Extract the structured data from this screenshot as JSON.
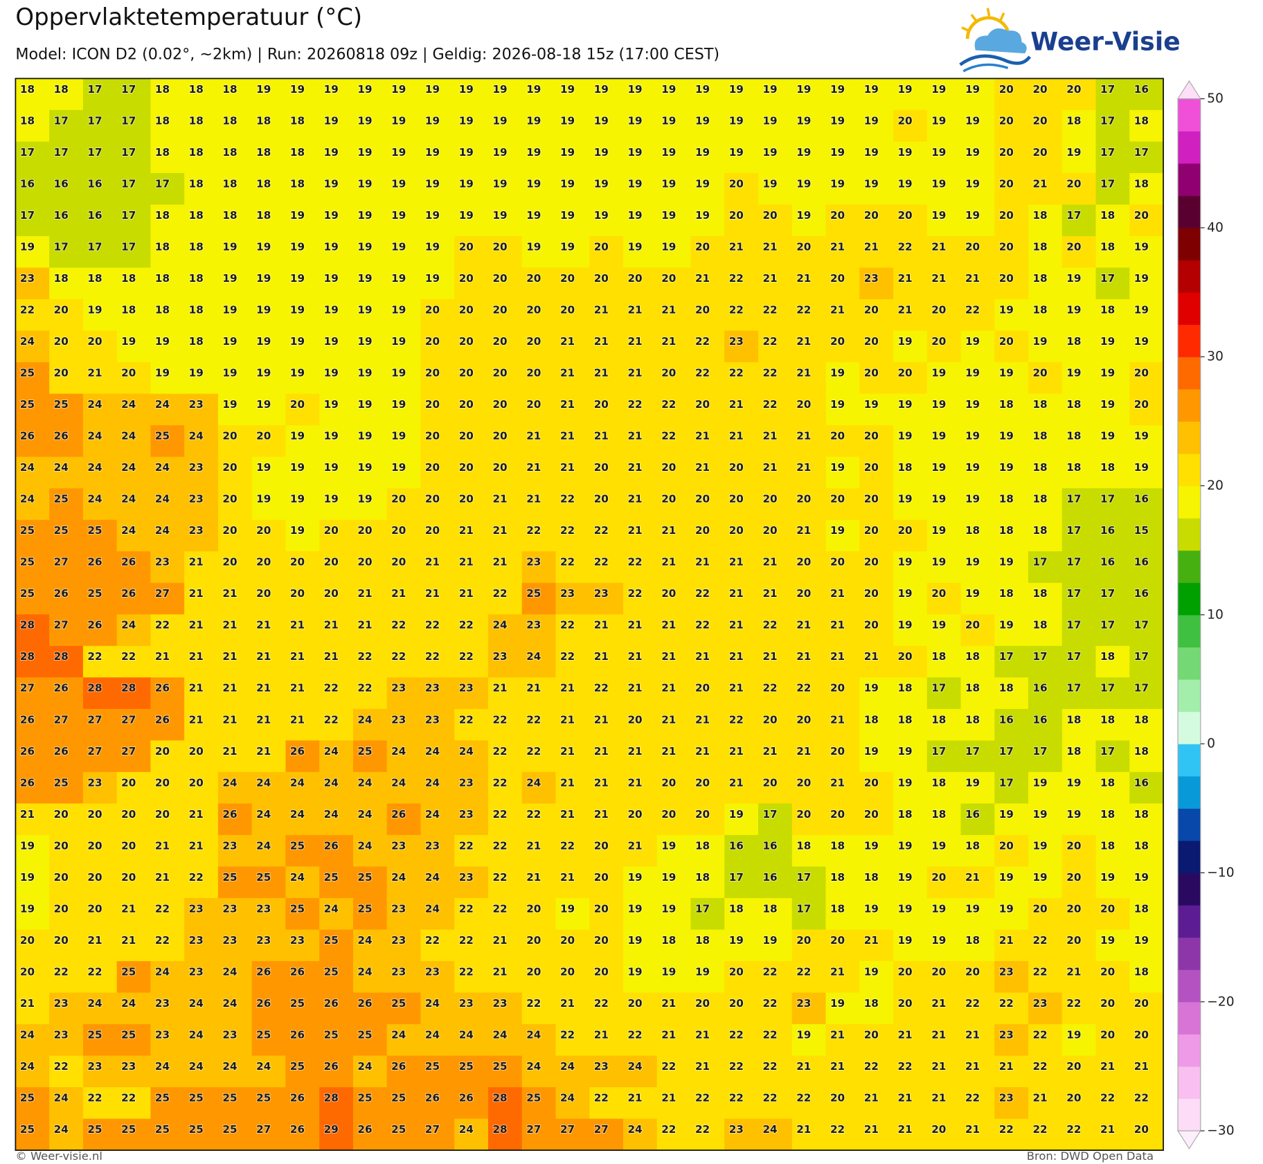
{
  "header": {
    "title": "Oppervlaktetemperatuur (°C)",
    "subtitle": "Model: ICON D2 (0.02°, ~2km)  |  Run: 20260818 09z  |  Geldig: 2026-08-18 15z (17:00 CEST)",
    "logo": "Weer-Visie"
  },
  "map": {
    "rows": [
      [
        18,
        18,
        17,
        17,
        18,
        18,
        18,
        19,
        19,
        19,
        19,
        19,
        19,
        19,
        19,
        19,
        19,
        19,
        19,
        19,
        19,
        19,
        19,
        19,
        19,
        19,
        19,
        19,
        19,
        20,
        20,
        20,
        17,
        16
      ],
      [
        18,
        17,
        17,
        17,
        18,
        18,
        18,
        18,
        18,
        19,
        19,
        19,
        19,
        19,
        19,
        19,
        19,
        19,
        19,
        19,
        19,
        19,
        19,
        19,
        19,
        19,
        20,
        19,
        19,
        20,
        20,
        18,
        17,
        18
      ],
      [
        17,
        17,
        17,
        17,
        18,
        18,
        18,
        18,
        18,
        19,
        19,
        19,
        19,
        19,
        19,
        19,
        19,
        19,
        19,
        19,
        19,
        19,
        19,
        19,
        19,
        19,
        19,
        19,
        19,
        20,
        20,
        19,
        17,
        17
      ],
      [
        16,
        16,
        16,
        17,
        17,
        18,
        18,
        18,
        18,
        19,
        19,
        19,
        19,
        19,
        19,
        19,
        19,
        19,
        19,
        19,
        19,
        20,
        19,
        19,
        19,
        19,
        19,
        19,
        19,
        20,
        21,
        20,
        17,
        18
      ],
      [
        17,
        16,
        16,
        17,
        18,
        18,
        18,
        18,
        19,
        19,
        19,
        19,
        19,
        19,
        19,
        19,
        19,
        19,
        19,
        19,
        19,
        20,
        20,
        19,
        20,
        20,
        20,
        19,
        19,
        20,
        18,
        17,
        18,
        20
      ],
      [
        19,
        17,
        17,
        17,
        18,
        18,
        19,
        19,
        19,
        19,
        19,
        19,
        19,
        20,
        20,
        19,
        19,
        20,
        19,
        19,
        20,
        21,
        21,
        20,
        21,
        21,
        22,
        21,
        20,
        20,
        18,
        20,
        18,
        19
      ],
      [
        23,
        18,
        18,
        18,
        18,
        18,
        19,
        19,
        19,
        19,
        19,
        19,
        19,
        20,
        20,
        20,
        20,
        20,
        20,
        20,
        21,
        22,
        21,
        21,
        20,
        23,
        21,
        21,
        21,
        20,
        18,
        19,
        17,
        19
      ],
      [
        22,
        20,
        19,
        18,
        18,
        18,
        19,
        19,
        19,
        19,
        19,
        19,
        20,
        20,
        20,
        20,
        20,
        21,
        21,
        21,
        20,
        22,
        22,
        22,
        21,
        20,
        21,
        20,
        22,
        19,
        18,
        19,
        18,
        19
      ],
      [
        24,
        20,
        20,
        19,
        19,
        18,
        19,
        19,
        19,
        19,
        19,
        19,
        20,
        20,
        20,
        20,
        21,
        21,
        21,
        21,
        22,
        23,
        22,
        21,
        20,
        20,
        19,
        20,
        19,
        20,
        19,
        18,
        19,
        19
      ],
      [
        25,
        20,
        21,
        20,
        19,
        19,
        19,
        19,
        19,
        19,
        19,
        19,
        20,
        20,
        20,
        20,
        21,
        21,
        21,
        20,
        22,
        22,
        22,
        21,
        19,
        20,
        20,
        19,
        19,
        19,
        20,
        19,
        19,
        20
      ],
      [
        25,
        25,
        24,
        24,
        24,
        23,
        19,
        19,
        20,
        19,
        19,
        19,
        20,
        20,
        20,
        20,
        21,
        20,
        22,
        22,
        20,
        21,
        22,
        20,
        19,
        19,
        19,
        19,
        19,
        18,
        18,
        18,
        19,
        20
      ],
      [
        26,
        26,
        24,
        24,
        25,
        24,
        20,
        20,
        19,
        19,
        19,
        19,
        20,
        20,
        20,
        21,
        21,
        21,
        21,
        22,
        21,
        21,
        21,
        21,
        20,
        20,
        19,
        19,
        19,
        19,
        18,
        18,
        19,
        19
      ],
      [
        24,
        24,
        24,
        24,
        24,
        23,
        20,
        19,
        19,
        19,
        19,
        19,
        20,
        20,
        20,
        21,
        21,
        20,
        21,
        20,
        21,
        20,
        21,
        21,
        19,
        20,
        18,
        19,
        19,
        19,
        18,
        18,
        18,
        19
      ],
      [
        24,
        25,
        24,
        24,
        24,
        23,
        20,
        19,
        19,
        19,
        19,
        20,
        20,
        20,
        21,
        21,
        22,
        20,
        21,
        20,
        20,
        20,
        20,
        20,
        20,
        20,
        19,
        19,
        19,
        18,
        18,
        17,
        17,
        16
      ],
      [
        25,
        25,
        25,
        24,
        24,
        23,
        20,
        20,
        19,
        20,
        20,
        20,
        20,
        21,
        21,
        22,
        22,
        22,
        21,
        21,
        20,
        20,
        20,
        21,
        19,
        20,
        20,
        19,
        18,
        18,
        18,
        17,
        16,
        15
      ],
      [
        25,
        27,
        26,
        26,
        23,
        21,
        20,
        20,
        20,
        20,
        20,
        20,
        21,
        21,
        21,
        23,
        22,
        22,
        22,
        21,
        21,
        21,
        21,
        20,
        20,
        20,
        19,
        19,
        19,
        19,
        17,
        17,
        16,
        16
      ],
      [
        25,
        26,
        25,
        26,
        27,
        21,
        21,
        20,
        20,
        20,
        21,
        21,
        21,
        21,
        22,
        25,
        23,
        23,
        22,
        20,
        22,
        21,
        21,
        20,
        21,
        20,
        19,
        20,
        19,
        18,
        18,
        17,
        17,
        16
      ],
      [
        28,
        27,
        26,
        24,
        22,
        21,
        21,
        21,
        21,
        21,
        21,
        22,
        22,
        22,
        24,
        23,
        22,
        21,
        21,
        21,
        22,
        21,
        22,
        21,
        21,
        20,
        19,
        19,
        20,
        19,
        18,
        17,
        17,
        17
      ],
      [
        28,
        28,
        22,
        22,
        21,
        21,
        21,
        21,
        21,
        21,
        22,
        22,
        22,
        22,
        23,
        24,
        22,
        21,
        21,
        21,
        21,
        21,
        21,
        21,
        21,
        21,
        20,
        18,
        18,
        17,
        17,
        17,
        18,
        17
      ],
      [
        27,
        26,
        28,
        28,
        26,
        21,
        21,
        21,
        21,
        22,
        22,
        23,
        23,
        23,
        21,
        21,
        21,
        22,
        21,
        21,
        20,
        21,
        22,
        22,
        20,
        19,
        18,
        17,
        18,
        18,
        16,
        17,
        17,
        17
      ],
      [
        26,
        27,
        27,
        27,
        26,
        21,
        21,
        21,
        21,
        22,
        24,
        23,
        23,
        22,
        22,
        22,
        21,
        21,
        20,
        21,
        21,
        22,
        20,
        20,
        21,
        18,
        18,
        18,
        18,
        16,
        16,
        18,
        18,
        18
      ],
      [
        26,
        26,
        27,
        27,
        20,
        20,
        21,
        21,
        26,
        24,
        25,
        24,
        24,
        24,
        22,
        22,
        21,
        21,
        21,
        21,
        21,
        21,
        21,
        21,
        20,
        19,
        19,
        17,
        17,
        17,
        17,
        18,
        17,
        18
      ],
      [
        26,
        25,
        23,
        20,
        20,
        20,
        24,
        24,
        24,
        24,
        24,
        24,
        24,
        23,
        22,
        24,
        21,
        21,
        21,
        20,
        20,
        21,
        20,
        20,
        21,
        20,
        19,
        18,
        19,
        17,
        19,
        19,
        18,
        16
      ],
      [
        21,
        20,
        20,
        20,
        20,
        21,
        26,
        24,
        24,
        24,
        24,
        26,
        24,
        23,
        22,
        22,
        21,
        21,
        20,
        20,
        20,
        19,
        17,
        20,
        20,
        20,
        18,
        18,
        16,
        19,
        19,
        19,
        18,
        18
      ],
      [
        19,
        20,
        20,
        20,
        21,
        21,
        23,
        24,
        25,
        26,
        24,
        23,
        23,
        22,
        22,
        21,
        22,
        20,
        21,
        19,
        18,
        16,
        16,
        18,
        18,
        19,
        19,
        19,
        18,
        20,
        19,
        20,
        18,
        18
      ],
      [
        19,
        20,
        20,
        20,
        21,
        22,
        25,
        25,
        24,
        25,
        25,
        24,
        24,
        23,
        22,
        21,
        21,
        20,
        19,
        19,
        18,
        17,
        16,
        17,
        18,
        18,
        19,
        20,
        21,
        19,
        19,
        20,
        19,
        19
      ],
      [
        19,
        20,
        20,
        21,
        22,
        23,
        23,
        23,
        25,
        24,
        25,
        23,
        24,
        22,
        22,
        20,
        19,
        20,
        19,
        19,
        17,
        18,
        18,
        17,
        18,
        19,
        19,
        19,
        19,
        19,
        20,
        20,
        20,
        18
      ],
      [
        20,
        20,
        21,
        21,
        22,
        23,
        23,
        23,
        23,
        25,
        24,
        23,
        22,
        22,
        21,
        20,
        20,
        20,
        19,
        18,
        18,
        19,
        19,
        20,
        20,
        21,
        19,
        19,
        18,
        21,
        22,
        20,
        19,
        19
      ],
      [
        20,
        22,
        22,
        25,
        24,
        23,
        24,
        26,
        26,
        25,
        24,
        23,
        23,
        22,
        21,
        20,
        20,
        20,
        19,
        19,
        19,
        20,
        22,
        22,
        21,
        19,
        20,
        20,
        20,
        23,
        22,
        21,
        20,
        18
      ],
      [
        21,
        23,
        24,
        24,
        23,
        24,
        24,
        26,
        25,
        26,
        26,
        25,
        24,
        23,
        23,
        22,
        21,
        22,
        20,
        21,
        20,
        20,
        22,
        23,
        19,
        18,
        20,
        21,
        22,
        22,
        23,
        22,
        20,
        20
      ],
      [
        24,
        23,
        25,
        25,
        23,
        24,
        23,
        25,
        26,
        25,
        25,
        24,
        24,
        24,
        24,
        24,
        22,
        21,
        22,
        21,
        21,
        22,
        22,
        19,
        21,
        20,
        21,
        21,
        21,
        23,
        22,
        19,
        20,
        20
      ],
      [
        24,
        22,
        23,
        23,
        24,
        24,
        24,
        24,
        25,
        26,
        24,
        26,
        25,
        25,
        25,
        24,
        24,
        23,
        24,
        22,
        21,
        22,
        22,
        21,
        21,
        22,
        22,
        21,
        21,
        21,
        22,
        20,
        21,
        21
      ],
      [
        25,
        24,
        22,
        22,
        25,
        25,
        25,
        25,
        26,
        28,
        25,
        25,
        26,
        26,
        28,
        25,
        24,
        22,
        21,
        21,
        22,
        22,
        22,
        22,
        20,
        21,
        21,
        21,
        22,
        23,
        21,
        20,
        22,
        22
      ],
      [
        25,
        24,
        25,
        25,
        25,
        25,
        25,
        27,
        26,
        29,
        26,
        25,
        27,
        24,
        28,
        27,
        27,
        27,
        24,
        22,
        22,
        23,
        24,
        21,
        22,
        21,
        21,
        20,
        21,
        22,
        22,
        22,
        21,
        20
      ]
    ]
  },
  "colorbar": {
    "lim": [
      -30,
      50
    ],
    "ticks": [
      50,
      40,
      30,
      20,
      10,
      0,
      {
        "value": -10,
        "label": "−10"
      },
      {
        "value": -20,
        "label": "−20"
      },
      {
        "value": -30,
        "label": "−30"
      }
    ],
    "colors": [
      "#fcdcf7",
      "#f8bff0",
      "#ee9ae6",
      "#d874d6",
      "#b452c2",
      "#8c36aa",
      "#5c1c94",
      "#2a0a60",
      "#0a1a70",
      "#0848aa",
      "#089ad8",
      "#30c4f4",
      "#d4fbe0",
      "#a4eeac",
      "#74d874",
      "#40c040",
      "#00a000",
      "#46b010",
      "#c8dc00",
      "#f6f400",
      "#ffe000",
      "#ffc000",
      "#ff9800",
      "#ff6a00",
      "#ff2a00",
      "#e00000",
      "#b40000",
      "#7e0000",
      "#5a0030",
      "#900070",
      "#d020c0",
      "#f050d8"
    ],
    "over_color": "#fde0f8",
    "under_color": "#fdeefb"
  },
  "footer": {
    "credit": "© Weer-visie.nl",
    "source": "Bron: DWD Open Data"
  }
}
